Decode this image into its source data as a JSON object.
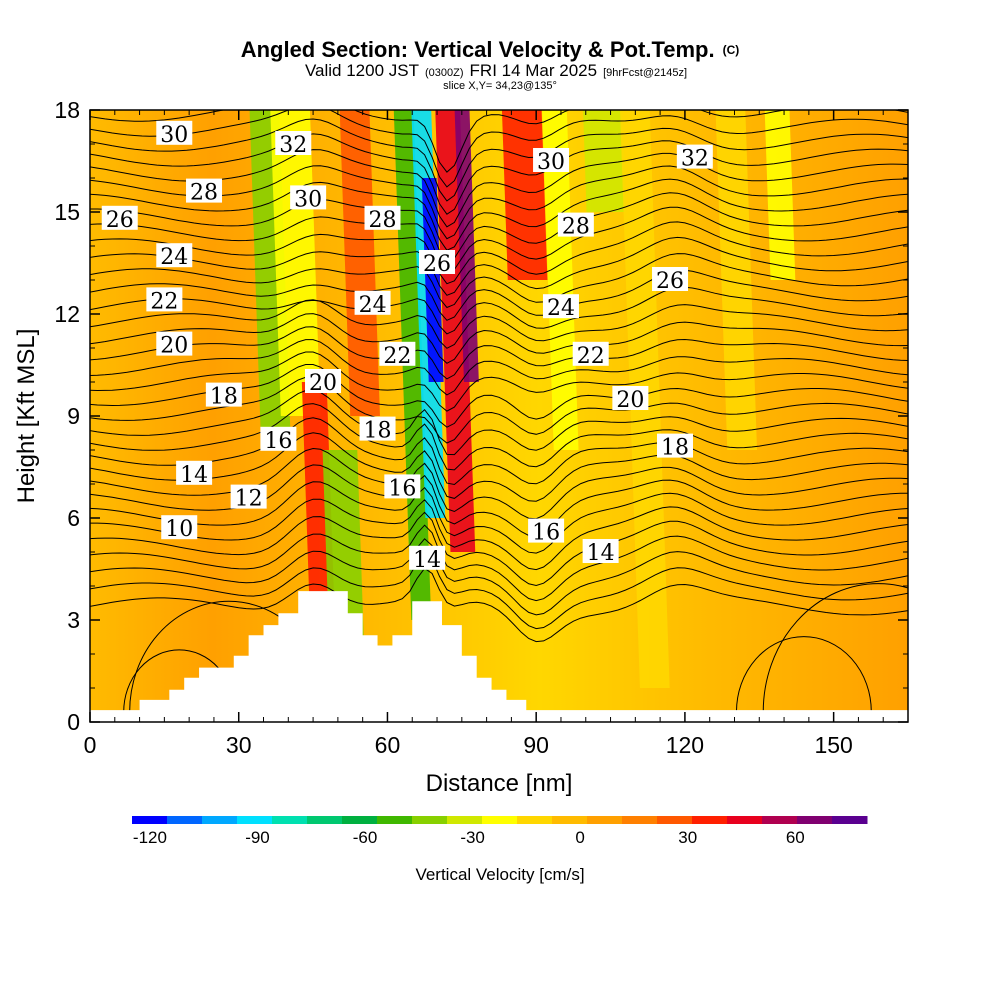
{
  "header": {
    "title": "Angled Section: Vertical Velocity & Pot.Temp.",
    "title_tag": "(C)",
    "subtitle_valid": "Valid 1200 JST",
    "subtitle_utc": "(0300Z)",
    "subtitle_date": "FRI 14 Mar 2025",
    "subtitle_fcst": "[9hrFcst@2145z]",
    "slice": "slice X,Y= 34,23@135°"
  },
  "chart_data": {
    "type": "heatmap",
    "xlabel": "Distance [nm]",
    "ylabel": "Height [Kft MSL]",
    "xlim": [
      0,
      165
    ],
    "ylim": [
      0,
      18
    ],
    "x_ticks": [
      0,
      30,
      60,
      90,
      120,
      150
    ],
    "y_ticks": [
      0,
      3,
      6,
      9,
      12,
      15,
      18
    ],
    "x_tick_labels": [
      "0",
      "30",
      "60",
      "90",
      "120",
      "150"
    ],
    "y_tick_labels": [
      "0",
      "3",
      "6",
      "9",
      "12",
      "15",
      "18"
    ],
    "filled_field": "Vertical Velocity [cm/s]",
    "contour_field": "Potential Temperature (C)",
    "colorbar": {
      "label": "Vertical Velocity [cm/s]",
      "min": -125,
      "max": 80,
      "step": 10,
      "tick_values": [
        -120,
        -90,
        -60,
        -30,
        0,
        30,
        60
      ],
      "tick_labels": [
        "-120",
        "-90",
        "-60",
        "-30",
        "0",
        "30",
        "60"
      ],
      "colors": [
        "#0000ff",
        "#0066ff",
        "#00a8ff",
        "#00e0ff",
        "#00e0b0",
        "#00c870",
        "#00b040",
        "#40b800",
        "#88d000",
        "#d0e800",
        "#ffff00",
        "#ffd700",
        "#ffbb00",
        "#ffa000",
        "#ff8000",
        "#ff5800",
        "#ff2000",
        "#e8001e",
        "#b00050",
        "#800070",
        "#5a0090"
      ]
    },
    "terrain_top_kft": [
      [
        0,
        0.35
      ],
      [
        10,
        0.35
      ],
      [
        10,
        0.65
      ],
      [
        16,
        0.65
      ],
      [
        16,
        0.95
      ],
      [
        19,
        0.95
      ],
      [
        19,
        1.3
      ],
      [
        22,
        1.3
      ],
      [
        22,
        1.6
      ],
      [
        29,
        1.6
      ],
      [
        29,
        1.95
      ],
      [
        32,
        1.95
      ],
      [
        32,
        2.55
      ],
      [
        35,
        2.55
      ],
      [
        35,
        2.85
      ],
      [
        38,
        2.85
      ],
      [
        38,
        3.2
      ],
      [
        42,
        3.2
      ],
      [
        42,
        3.85
      ],
      [
        52,
        3.85
      ],
      [
        52,
        3.2
      ],
      [
        55,
        3.2
      ],
      [
        55,
        2.55
      ],
      [
        58,
        2.55
      ],
      [
        58,
        2.25
      ],
      [
        61,
        2.25
      ],
      [
        61,
        2.55
      ],
      [
        65,
        2.55
      ],
      [
        65,
        3.55
      ],
      [
        71,
        3.55
      ],
      [
        71,
        2.85
      ],
      [
        75,
        2.85
      ],
      [
        75,
        1.95
      ],
      [
        78,
        1.95
      ],
      [
        78,
        1.3
      ],
      [
        81,
        1.3
      ],
      [
        81,
        0.95
      ],
      [
        84,
        0.95
      ],
      [
        84,
        0.65
      ],
      [
        88,
        0.65
      ],
      [
        88,
        0.35
      ],
      [
        165,
        0.35
      ]
    ],
    "velocity_bands": [
      {
        "x": 34,
        "w": 6,
        "value": -40,
        "from_kft": 8,
        "to_kft": 18
      },
      {
        "x": 38,
        "w": 8,
        "value": -25,
        "from_kft": 9,
        "to_kft": 18
      },
      {
        "x": 44,
        "w": 5,
        "value": 35,
        "from_kft": 3,
        "to_kft": 10
      },
      {
        "x": 48,
        "w": 7,
        "value": -45,
        "from_kft": 2,
        "to_kft": 8
      },
      {
        "x": 52,
        "w": 6,
        "value": 30,
        "from_kft": 9,
        "to_kft": 18
      },
      {
        "x": 64,
        "w": 4,
        "value": -55,
        "from_kft": 3,
        "to_kft": 18
      },
      {
        "x": 67,
        "w": 4,
        "value": -95,
        "from_kft": 6,
        "to_kft": 18
      },
      {
        "x": 68,
        "w": 3,
        "value": -120,
        "from_kft": 10,
        "to_kft": 16
      },
      {
        "x": 72,
        "w": 5,
        "value": 45,
        "from_kft": 5,
        "to_kft": 18
      },
      {
        "x": 75,
        "w": 3,
        "value": 65,
        "from_kft": 10,
        "to_kft": 18
      },
      {
        "x": 84,
        "w": 8,
        "value": 35,
        "from_kft": 13,
        "to_kft": 18
      },
      {
        "x": 93,
        "w": 5,
        "value": -20,
        "from_kft": 8,
        "to_kft": 18
      },
      {
        "x": 100,
        "w": 8,
        "value": -35,
        "from_kft": 15,
        "to_kft": 18
      },
      {
        "x": 110,
        "w": 6,
        "value": -10,
        "from_kft": 1,
        "to_kft": 18
      },
      {
        "x": 128,
        "w": 6,
        "value": -15,
        "from_kft": 8,
        "to_kft": 18
      },
      {
        "x": 137,
        "w": 5,
        "value": -25,
        "from_kft": 13,
        "to_kft": 18
      }
    ],
    "theta_levels": [
      10,
      12,
      14,
      16,
      18,
      20,
      22,
      24,
      26,
      28,
      30,
      32
    ],
    "contour_labels": [
      {
        "text": "30",
        "x": 17,
        "y": 17.3
      },
      {
        "text": "32",
        "x": 41,
        "y": 17.0
      },
      {
        "text": "28",
        "x": 23,
        "y": 15.6
      },
      {
        "text": "30",
        "x": 44,
        "y": 15.4
      },
      {
        "text": "26",
        "x": 6,
        "y": 14.8
      },
      {
        "text": "28",
        "x": 59,
        "y": 14.8
      },
      {
        "text": "24",
        "x": 17,
        "y": 13.7
      },
      {
        "text": "26",
        "x": 70,
        "y": 13.5
      },
      {
        "text": "22",
        "x": 15,
        "y": 12.4
      },
      {
        "text": "24",
        "x": 57,
        "y": 12.3
      },
      {
        "text": "20",
        "x": 17,
        "y": 11.1
      },
      {
        "text": "22",
        "x": 62,
        "y": 10.8
      },
      {
        "text": "20",
        "x": 47,
        "y": 10.0
      },
      {
        "text": "18",
        "x": 27,
        "y": 9.6
      },
      {
        "text": "18",
        "x": 58,
        "y": 8.6
      },
      {
        "text": "16",
        "x": 38,
        "y": 8.3
      },
      {
        "text": "16",
        "x": 63,
        "y": 6.9
      },
      {
        "text": "14",
        "x": 21,
        "y": 7.3
      },
      {
        "text": "12",
        "x": 32,
        "y": 6.6
      },
      {
        "text": "10",
        "x": 18,
        "y": 5.7
      },
      {
        "text": "14",
        "x": 68,
        "y": 4.8
      },
      {
        "text": "30",
        "x": 93,
        "y": 16.5
      },
      {
        "text": "32",
        "x": 122,
        "y": 16.6
      },
      {
        "text": "28",
        "x": 98,
        "y": 14.6
      },
      {
        "text": "26",
        "x": 117,
        "y": 13.0
      },
      {
        "text": "24",
        "x": 95,
        "y": 12.2
      },
      {
        "text": "22",
        "x": 101,
        "y": 10.8
      },
      {
        "text": "20",
        "x": 109,
        "y": 9.5
      },
      {
        "text": "18",
        "x": 118,
        "y": 8.1
      },
      {
        "text": "16",
        "x": 92,
        "y": 5.6
      },
      {
        "text": "14",
        "x": 103,
        "y": 5.0
      }
    ]
  }
}
